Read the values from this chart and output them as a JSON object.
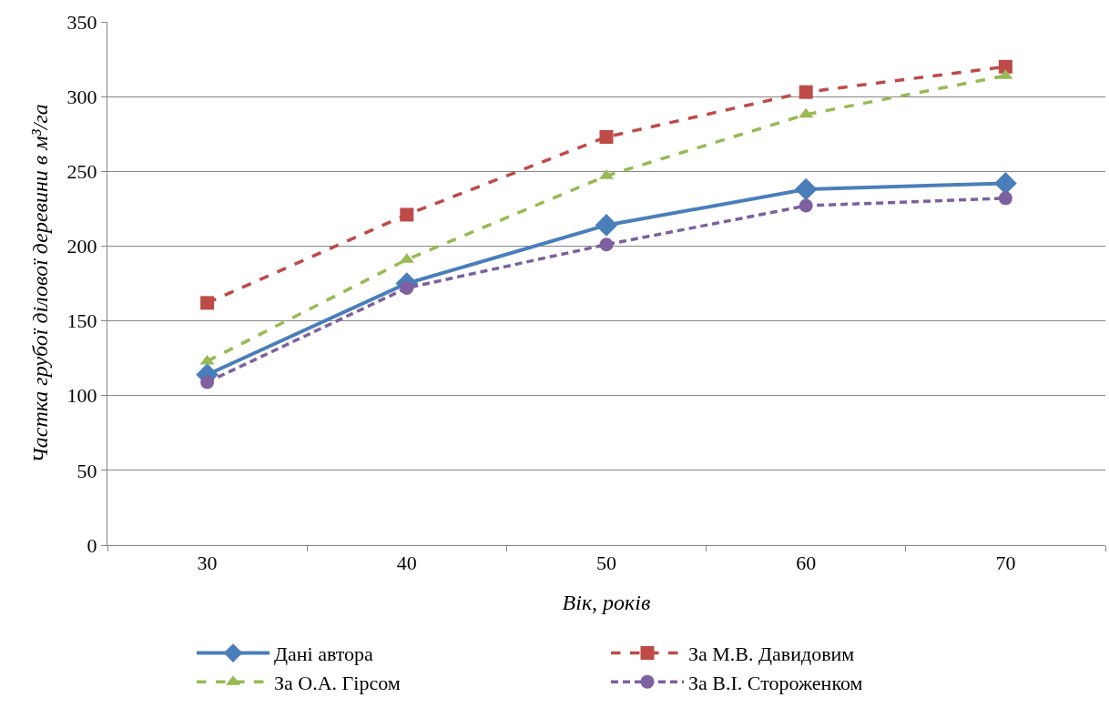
{
  "chart_data": {
    "type": "line",
    "xlabel": "Вік, років",
    "ylabel": "Частка грубої ділової деревини в м³/га",
    "categories": [
      "30",
      "40",
      "50",
      "60",
      "70"
    ],
    "ylim": [
      0,
      350
    ],
    "yticks": [
      0,
      50,
      100,
      150,
      200,
      250,
      300,
      350
    ],
    "grid": "y",
    "legend": "bottom",
    "series": [
      {
        "name": "Дані автора",
        "color": "#4a7ebb",
        "marker": "diamond",
        "line_style": "solid",
        "values": [
          114,
          175,
          214,
          238,
          242
        ]
      },
      {
        "name": "За М.В. Давидовим",
        "color": "#be4b48",
        "marker": "square",
        "line_style": "dashed",
        "values": [
          162,
          221,
          273,
          303,
          320
        ]
      },
      {
        "name": "За О.А. Гірсом",
        "color": "#98b954",
        "marker": "triangle",
        "line_style": "dashed",
        "values": [
          123,
          191,
          247,
          288,
          314
        ]
      },
      {
        "name": "За В.І. Стороженком",
        "color": "#7d60a0",
        "marker": "circle",
        "line_style": "dotted",
        "values": [
          109,
          172,
          201,
          227,
          232
        ]
      }
    ]
  }
}
